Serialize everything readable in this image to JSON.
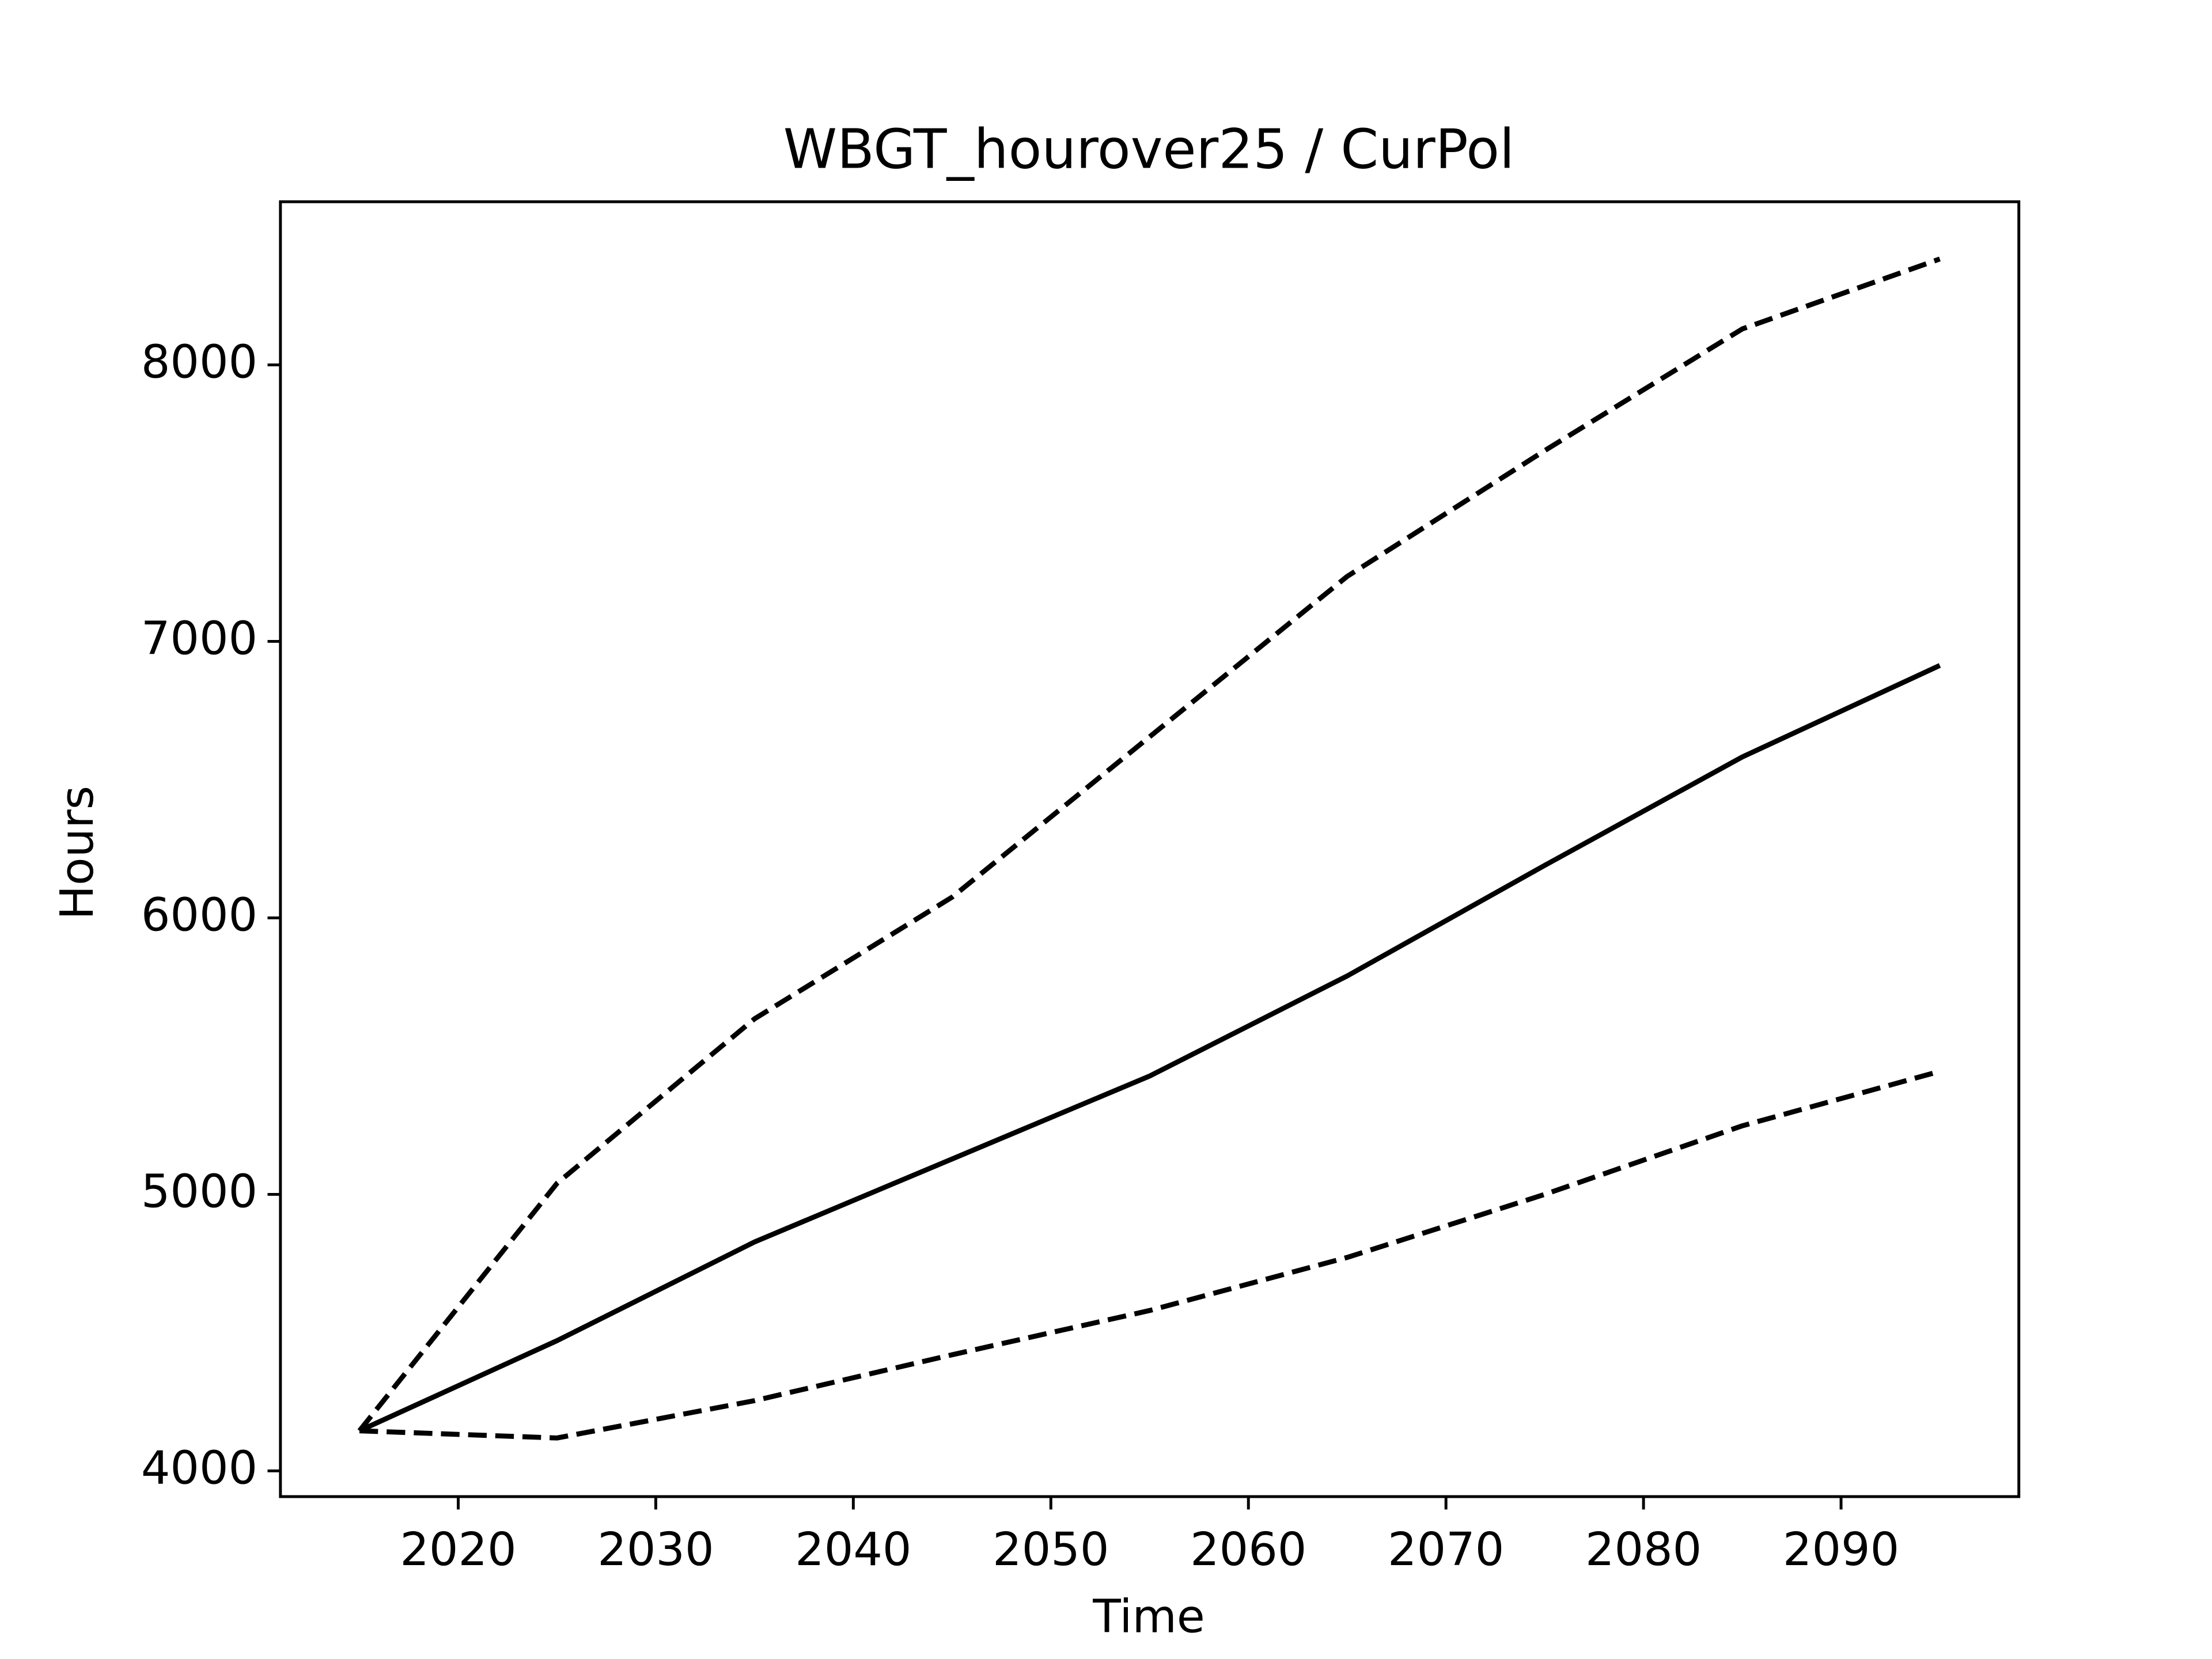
{
  "chart_data": {
    "type": "line",
    "title": "WBGT_hourover25 / CurPol",
    "x_label": "Time",
    "y_label": "Hours",
    "x": [
      2015,
      2025,
      2035,
      2045,
      2055,
      2065,
      2075,
      2085,
      2095
    ],
    "series": [
      {
        "color": "#000000",
        "linestyle": "solid",
        "values": [
          4145,
          4471,
          4828,
          5128,
          5428,
          5790,
          6190,
          6582,
          6913
        ]
      },
      {
        "color": "#000000",
        "linestyle": "dashed",
        "values": [
          4145,
          5040,
          5635,
          6075,
          6655,
          7235,
          7690,
          8130,
          8383
        ]
      },
      {
        "color": "#000000",
        "linestyle": "dashed",
        "values": [
          4145,
          4119,
          4254,
          4420,
          4580,
          4772,
          5000,
          5248,
          5445
        ]
      }
    ],
    "xlim": [
      2011,
      2099
    ],
    "ylim": [
      3907,
      8590
    ],
    "xticks": [
      2020,
      2030,
      2040,
      2050,
      2060,
      2070,
      2080,
      2090
    ],
    "yticks": [
      4000,
      5000,
      6000,
      7000,
      8000
    ],
    "grid": false
  }
}
